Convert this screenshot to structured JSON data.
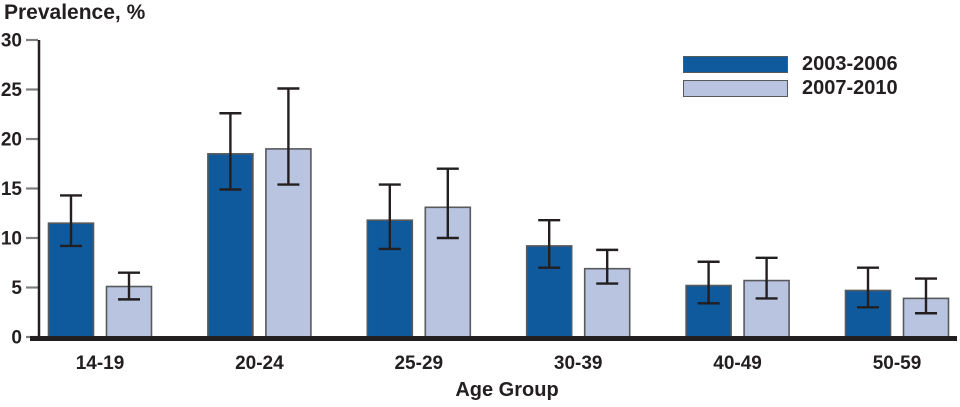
{
  "chart_data": {
    "type": "bar",
    "title": "Prevalence, %",
    "xlabel": "Age Group",
    "ylabel": "Prevalence, %",
    "ylim": [
      0,
      30
    ],
    "yticks": [
      0,
      5,
      10,
      15,
      20,
      25,
      30
    ],
    "grid": false,
    "legend_position": "top-right",
    "error_bars": true,
    "categories": [
      "14-19",
      "20-24",
      "25-29",
      "30-39",
      "40-49",
      "50-59"
    ],
    "series": [
      {
        "name": "2003-2006",
        "color": "#0e5a9d",
        "values": [
          11.5,
          18.5,
          11.8,
          9.2,
          5.2,
          4.7
        ],
        "ci_low": [
          9.2,
          14.9,
          8.9,
          7.0,
          3.4,
          3.0
        ],
        "ci_high": [
          14.3,
          22.6,
          15.4,
          11.8,
          7.6,
          7.0
        ]
      },
      {
        "name": "2007-2010",
        "color": "#b9c4e0",
        "values": [
          5.1,
          19.0,
          13.1,
          6.9,
          5.7,
          3.9
        ],
        "ci_low": [
          3.8,
          15.4,
          10.0,
          5.4,
          3.9,
          2.4
        ],
        "ci_high": [
          6.5,
          25.1,
          17.0,
          8.8,
          8.0,
          5.9
        ]
      }
    ]
  },
  "colors": {
    "axis": "#231f20",
    "tick": "#7d7f82",
    "bar_outline": "#58595b",
    "error_bar": "#231f20",
    "text": "#231f20",
    "background": "#ffffff"
  }
}
